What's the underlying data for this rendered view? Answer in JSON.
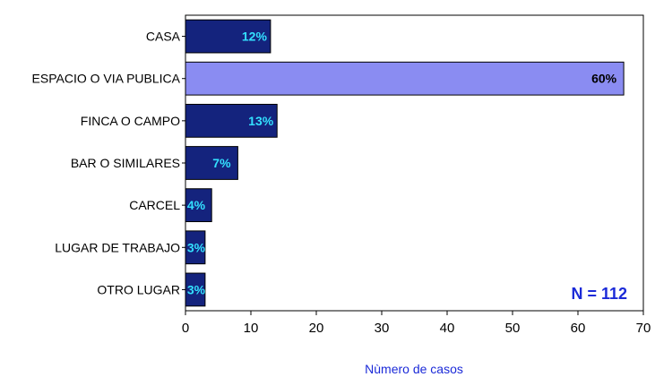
{
  "chart_data": {
    "type": "bar",
    "orientation": "horizontal",
    "categories": [
      "CASA",
      "ESPACIO O VIA PUBLICA",
      "FINCA O CAMPO",
      "BAR O SIMILARES",
      "CARCEL",
      "LUGAR DE TRABAJO",
      "OTRO LUGAR"
    ],
    "values": [
      13,
      67,
      14,
      8,
      4,
      3,
      3
    ],
    "data_labels": [
      "12%",
      "60%",
      "13%",
      "7%",
      "4%",
      "3%",
      "3%"
    ],
    "highlight_index": 1,
    "xlabel": "Nùmero de casos",
    "xlim": [
      0,
      70
    ],
    "xticks": [
      0,
      10,
      20,
      30,
      40,
      50,
      60,
      70
    ],
    "grid": false,
    "annotation": "N = 112",
    "colors": {
      "bar": "#14237d",
      "bar_highlight": "#8a8cf2",
      "label_on_dark": "#33e0ff",
      "label_on_light": "#000000",
      "annotation": "#1b2ad8",
      "axis_title": "#1b2ad8"
    }
  }
}
